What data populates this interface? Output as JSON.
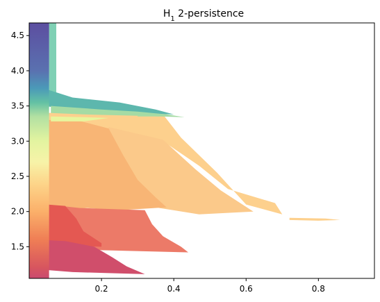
{
  "chart_data": {
    "type": "heatmap",
    "title": "H",
    "title_subscript": "1",
    "title_suffix": " 2-persistence",
    "xlabel": "",
    "ylabel": "",
    "xlim": [
      0.0,
      0.955
    ],
    "ylim": [
      1.05,
      4.68
    ],
    "xticks": [
      0.2,
      0.4,
      0.6,
      0.8
    ],
    "xtick_labels": [
      "0.2",
      "0.4",
      "0.6",
      "0.8"
    ],
    "yticks": [
      1.5,
      2.0,
      2.5,
      3.0,
      3.5,
      4.0,
      4.5
    ],
    "ytick_labels": [
      "1.5",
      "2.0",
      "2.5",
      "3.0",
      "3.5",
      "4.0",
      "4.5"
    ],
    "grid": false,
    "legend": "none",
    "colormap": "Spectral",
    "regions": [
      {
        "name": "upper-band",
        "color": "#fdd08d",
        "polygon": [
          [
            0.05,
            3.4
          ],
          [
            0.2,
            3.42
          ],
          [
            0.37,
            3.38
          ],
          [
            0.42,
            3.05
          ],
          [
            0.52,
            2.55
          ],
          [
            0.6,
            2.1
          ],
          [
            0.7,
            1.96
          ],
          [
            0.68,
            2.12
          ],
          [
            0.55,
            2.32
          ],
          [
            0.47,
            2.65
          ],
          [
            0.37,
            3.0
          ],
          [
            0.18,
            3.18
          ],
          [
            0.05,
            3.2
          ]
        ]
      },
      {
        "name": "orange-band-right",
        "color": "#fbc98a",
        "polygon": [
          [
            0.22,
            3.2
          ],
          [
            0.37,
            3.02
          ],
          [
            0.46,
            2.6
          ],
          [
            0.53,
            2.3
          ],
          [
            0.62,
            2.0
          ],
          [
            0.47,
            1.96
          ],
          [
            0.36,
            2.05
          ],
          [
            0.3,
            2.2
          ],
          [
            0.25,
            2.6
          ],
          [
            0.2,
            3.0
          ]
        ]
      },
      {
        "name": "orange-band-main",
        "color": "#f8b575",
        "polygon": [
          [
            0.05,
            3.3
          ],
          [
            0.13,
            3.3
          ],
          [
            0.22,
            3.18
          ],
          [
            0.26,
            2.8
          ],
          [
            0.3,
            2.45
          ],
          [
            0.35,
            2.2
          ],
          [
            0.38,
            2.06
          ],
          [
            0.25,
            2.02
          ],
          [
            0.16,
            2.05
          ],
          [
            0.05,
            2.0
          ]
        ]
      },
      {
        "name": "salmon-band",
        "color": "#ec7a68",
        "polygon": [
          [
            0.05,
            2.1
          ],
          [
            0.14,
            2.05
          ],
          [
            0.32,
            2.02
          ],
          [
            0.34,
            1.82
          ],
          [
            0.37,
            1.65
          ],
          [
            0.42,
            1.5
          ],
          [
            0.44,
            1.42
          ],
          [
            0.2,
            1.45
          ],
          [
            0.05,
            1.55
          ]
        ]
      },
      {
        "name": "red-band",
        "color": "#e45852",
        "polygon": [
          [
            0.05,
            2.1
          ],
          [
            0.1,
            2.08
          ],
          [
            0.13,
            1.9
          ],
          [
            0.15,
            1.72
          ],
          [
            0.2,
            1.55
          ],
          [
            0.2,
            1.5
          ],
          [
            0.07,
            1.52
          ],
          [
            0.05,
            1.55
          ]
        ]
      },
      {
        "name": "crimson-band",
        "color": "#d04e6b",
        "polygon": [
          [
            0.02,
            1.6
          ],
          [
            0.1,
            1.58
          ],
          [
            0.18,
            1.5
          ],
          [
            0.23,
            1.35
          ],
          [
            0.27,
            1.22
          ],
          [
            0.32,
            1.11
          ],
          [
            0.12,
            1.14
          ],
          [
            0.02,
            1.18
          ]
        ]
      },
      {
        "name": "teal-stripe",
        "color": "#7fd0b4",
        "polygon": [
          [
            0.055,
            4.68
          ],
          [
            0.075,
            4.68
          ],
          [
            0.075,
            3.55
          ],
          [
            0.055,
            3.55
          ]
        ]
      },
      {
        "name": "blue-teal-shelf",
        "color": "#5db7ad",
        "polygon": [
          [
            0.04,
            3.75
          ],
          [
            0.12,
            3.62
          ],
          [
            0.25,
            3.55
          ],
          [
            0.35,
            3.45
          ],
          [
            0.4,
            3.38
          ],
          [
            0.25,
            3.4
          ],
          [
            0.12,
            3.45
          ],
          [
            0.04,
            3.5
          ]
        ]
      },
      {
        "name": "green-shelf",
        "color": "#a5dba4",
        "polygon": [
          [
            0.06,
            3.5
          ],
          [
            0.2,
            3.45
          ],
          [
            0.3,
            3.42
          ],
          [
            0.38,
            3.38
          ],
          [
            0.43,
            3.34
          ],
          [
            0.3,
            3.36
          ],
          [
            0.15,
            3.38
          ],
          [
            0.06,
            3.4
          ]
        ]
      },
      {
        "name": "yellow-shelf",
        "color": "#e8f59d",
        "polygon": [
          [
            0.06,
            3.35
          ],
          [
            0.15,
            3.34
          ],
          [
            0.22,
            3.33
          ],
          [
            0.15,
            3.28
          ],
          [
            0.06,
            3.28
          ]
        ]
      },
      {
        "name": "thin-sliver",
        "color": "#a8dca5",
        "polygon": [
          [
            0.3,
            3.37
          ],
          [
            0.36,
            3.37
          ],
          [
            0.36,
            3.35
          ],
          [
            0.3,
            3.35
          ]
        ]
      },
      {
        "name": "right-streak",
        "color": "#fdd08d",
        "polygon": [
          [
            0.72,
            1.91
          ],
          [
            0.82,
            1.9
          ],
          [
            0.86,
            1.88
          ],
          [
            0.8,
            1.87
          ],
          [
            0.72,
            1.88
          ]
        ]
      }
    ],
    "left_column": {
      "x_range": [
        0.0,
        0.055
      ],
      "stops": [
        {
          "y": 1.05,
          "color": "#c94a70"
        },
        {
          "y": 1.2,
          "color": "#d7555f"
        },
        {
          "y": 1.6,
          "color": "#ef7e55"
        },
        {
          "y": 2.0,
          "color": "#fbb06a"
        },
        {
          "y": 2.4,
          "color": "#fdd58a"
        },
        {
          "y": 2.7,
          "color": "#f7f3a8"
        },
        {
          "y": 3.0,
          "color": "#e3f4a0"
        },
        {
          "y": 3.35,
          "color": "#b2e0a2"
        },
        {
          "y": 3.55,
          "color": "#63c1a4"
        },
        {
          "y": 3.75,
          "color": "#4b9ab8"
        },
        {
          "y": 4.0,
          "color": "#5a71b0"
        },
        {
          "y": 4.68,
          "color": "#5c4ea0"
        }
      ]
    }
  }
}
